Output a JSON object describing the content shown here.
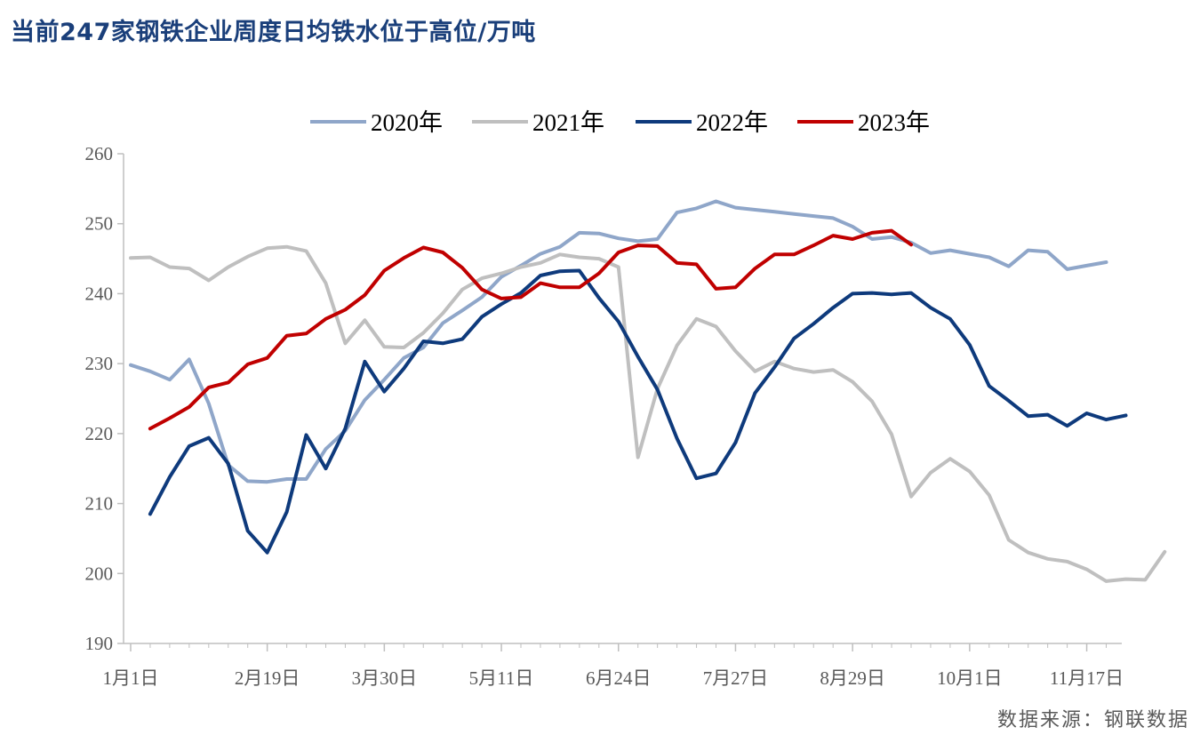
{
  "title": "当前247家钢铁企业周度日均铁水位于高位/万吨",
  "source": "数据来源：钢联数据",
  "colors": {
    "2020": "#8fa6c9",
    "2021": "#bfbfbf",
    "2022": "#0e3a7c",
    "2023": "#c00000",
    "axis": "#bfbfbf",
    "text": "#595959"
  },
  "chart_data": {
    "type": "line",
    "ylim": [
      190,
      260
    ],
    "yticks": [
      190,
      200,
      210,
      220,
      230,
      240,
      250,
      260
    ],
    "xlim": [
      0,
      52
    ],
    "xticks": [
      {
        "index": 0,
        "label": "1月1日"
      },
      {
        "index": 7,
        "label": "2月19日"
      },
      {
        "index": 13,
        "label": "3月30日"
      },
      {
        "index": 19,
        "label": "5月11日"
      },
      {
        "index": 25,
        "label": "6月24日"
      },
      {
        "index": 31,
        "label": "7月27日"
      },
      {
        "index": 37,
        "label": "8月29日"
      },
      {
        "index": 43,
        "label": "10月1日"
      },
      {
        "index": 49,
        "label": "11月17日"
      }
    ],
    "grid": false,
    "legend_position": "top-center",
    "series": [
      {
        "name": "2020年",
        "color_key": "2020",
        "start": 0,
        "values": [
          229.8,
          228.9,
          227.7,
          230.6,
          224.3,
          215.5,
          213.2,
          213.1,
          213.5,
          213.5,
          217.8,
          220.4,
          224.8,
          227.7,
          230.8,
          232.3,
          235.8,
          237.6,
          239.5,
          242.4,
          244.0,
          245.7,
          246.7,
          248.7,
          248.6,
          247.9,
          247.5,
          247.8,
          251.6,
          252.2,
          253.2,
          252.3,
          252.0,
          251.7,
          251.4,
          251.1,
          250.8,
          249.6,
          247.8,
          248.1,
          247.3,
          245.8,
          246.2,
          245.7,
          245.2,
          243.9,
          246.2,
          246.0,
          243.5,
          244.0,
          244.5
        ]
      },
      {
        "name": "2021年",
        "color_key": "2021",
        "start": 0,
        "values": [
          245.1,
          245.2,
          243.8,
          243.6,
          241.9,
          243.8,
          245.3,
          246.5,
          246.7,
          246.1,
          241.5,
          232.9,
          236.2,
          232.4,
          232.3,
          234.4,
          237.2,
          240.6,
          242.2,
          242.9,
          243.8,
          244.4,
          245.6,
          245.2,
          245.0,
          243.8,
          216.6,
          226.4,
          232.6,
          236.4,
          235.3,
          231.8,
          228.9,
          230.3,
          229.3,
          228.8,
          229.1,
          227.4,
          224.6,
          219.9,
          211.0,
          214.4,
          216.4,
          214.6,
          211.2,
          204.8,
          203.0,
          202.1,
          201.7,
          200.6,
          198.9,
          199.2,
          199.1,
          203.1
        ]
      },
      {
        "name": "2022年",
        "color_key": "2022",
        "start": 1,
        "values": [
          208.5,
          213.8,
          218.2,
          219.4,
          215.7,
          206.1,
          203.0,
          208.8,
          219.8,
          215.0,
          220.7,
          230.3,
          226.0,
          229.3,
          233.2,
          232.9,
          233.5,
          236.7,
          238.5,
          240.1,
          242.6,
          243.2,
          243.3,
          239.4,
          236.0,
          231.0,
          226.3,
          219.3,
          213.6,
          214.3,
          218.7,
          225.8,
          229.5,
          233.6,
          235.7,
          238.0,
          240.0,
          240.1,
          239.9,
          240.1,
          238.0,
          236.4,
          232.7,
          226.8,
          224.7,
          222.5,
          222.7,
          221.1,
          222.9,
          222.0,
          222.6
        ]
      },
      {
        "name": "2023年",
        "color_key": "2023",
        "start": 1,
        "values": [
          220.7,
          222.2,
          223.8,
          226.6,
          227.3,
          229.9,
          230.8,
          234.0,
          234.3,
          236.4,
          237.7,
          239.8,
          243.3,
          245.1,
          246.6,
          245.9,
          243.7,
          240.6,
          239.3,
          239.5,
          241.5,
          240.9,
          240.9,
          242.9,
          245.9,
          246.9,
          246.8,
          244.4,
          244.2,
          240.7,
          240.9,
          243.6,
          245.6,
          245.6,
          246.9,
          248.3,
          247.8,
          248.7,
          249.0,
          247.0
        ]
      }
    ]
  }
}
